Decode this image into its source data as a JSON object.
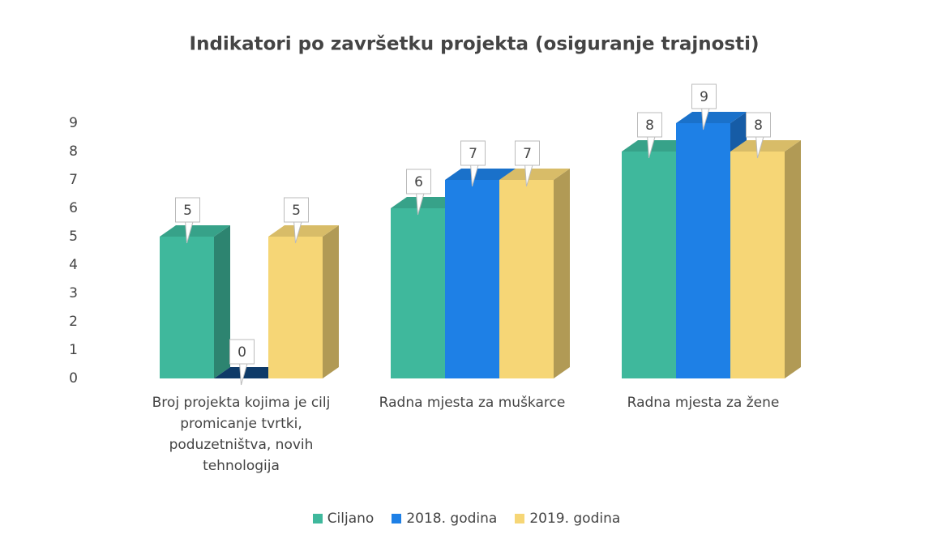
{
  "chart_data": {
    "type": "bar3d",
    "title": "Indikatori po završetku projekta (osiguranje trajnosti)",
    "categories": [
      "Broj projekta kojima je cilj promicanje tvrtki, poduzetništva, novih tehnologija",
      "Radna mjesta za muškarce",
      "Radna mjesta za žene"
    ],
    "series": [
      {
        "name": "Ciljano",
        "color": "#3fb89c",
        "values": [
          5,
          6,
          8
        ]
      },
      {
        "name": "2018. godina",
        "color": "#1e80e6",
        "values": [
          0,
          7,
          9
        ]
      },
      {
        "name": "2019. godina",
        "color": "#f6d676",
        "values": [
          5,
          7,
          8
        ]
      }
    ],
    "ylim": [
      0,
      9
    ],
    "yticks": [
      0,
      1,
      2,
      3,
      4,
      5,
      6,
      7,
      8,
      9
    ],
    "legend": "bottom"
  }
}
